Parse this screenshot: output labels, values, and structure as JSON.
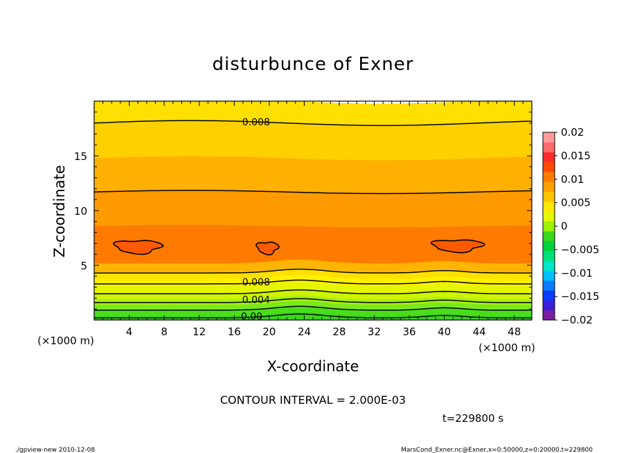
{
  "chart_data": {
    "type": "heatmap",
    "title": "disturbunce of Exner",
    "xlabel": "X-coordinate",
    "ylabel": "Z-coordinate",
    "x_unit": "(×1000 m)",
    "y_unit": "(×1000 m)",
    "xlim": [
      0,
      50
    ],
    "ylim": [
      0,
      20
    ],
    "x_ticks": [
      4,
      8,
      12,
      16,
      20,
      24,
      28,
      32,
      36,
      40,
      44,
      48
    ],
    "y_ticks": [
      5,
      10,
      15
    ],
    "contour_interval_label": "CONTOUR INTERVAL = 2.000E-03",
    "contour_labels": [
      {
        "text": "0.008",
        "x": 18.5,
        "z": 18.0
      },
      {
        "text": "0.008",
        "x": 18.5,
        "z": 3.5
      },
      {
        "text": "0.004",
        "x": 18.5,
        "z": 1.9
      },
      {
        "text": "0.00",
        "x": 18.0,
        "z": 0.4
      }
    ],
    "colorbar": {
      "min": -0.02,
      "max": 0.02,
      "tick_labels": [
        "0.02",
        "0.015",
        "0.01",
        "0.005",
        "0",
        "−0.005",
        "−0.01",
        "−0.015",
        "−0.02"
      ],
      "colors": [
        "#7a1fa2",
        "#3a1fd6",
        "#0a3cff",
        "#0a7bff",
        "#00bfff",
        "#00e6c8",
        "#00e07a",
        "#00d23c",
        "#3ad81a",
        "#9cf000",
        "#e6f500",
        "#ffe600",
        "#ffc400",
        "#ffa000",
        "#ff7a00",
        "#ff4a00",
        "#ff2a2a",
        "#ff6a6a",
        "#ff9a9a"
      ]
    },
    "bands": [
      {
        "z0": 0.0,
        "z1": 0.5,
        "value": 0.0,
        "color": "#3ad81a"
      },
      {
        "z0": 0.5,
        "z1": 1.0,
        "value": 0.001,
        "color": "#4ade1a"
      },
      {
        "z0": 1.0,
        "z1": 1.5,
        "value": 0.002,
        "color": "#7ae81a"
      },
      {
        "z0": 1.5,
        "z1": 2.0,
        "value": 0.003,
        "color": "#a6f010"
      },
      {
        "z0": 2.0,
        "z1": 2.6,
        "value": 0.004,
        "color": "#cff400"
      },
      {
        "z0": 2.6,
        "z1": 3.2,
        "value": 0.005,
        "color": "#e6f500"
      },
      {
        "z0": 3.2,
        "z1": 3.9,
        "value": 0.006,
        "color": "#fff000"
      },
      {
        "z0": 3.9,
        "z1": 4.5,
        "value": 0.007,
        "color": "#ffe000"
      },
      {
        "z0": 4.5,
        "z1": 5.3,
        "value": 0.0085,
        "color": "#ffb400"
      },
      {
        "z0": 5.3,
        "z1": 8.6,
        "value": 0.0105,
        "color": "#ff7a00"
      },
      {
        "z0": 8.6,
        "z1": 11.7,
        "value": 0.0095,
        "color": "#ff9a00"
      },
      {
        "z0": 11.7,
        "z1": 14.8,
        "value": 0.009,
        "color": "#ffb000"
      },
      {
        "z0": 14.8,
        "z1": 18.0,
        "value": 0.0085,
        "color": "#ffd000"
      },
      {
        "z0": 18.0,
        "z1": 20.0,
        "value": 0.008,
        "color": "#ffe000"
      }
    ],
    "contour_lines_z": [
      0.3,
      1.0,
      1.7,
      2.5,
      3.4,
      4.4,
      11.7,
      18.0
    ],
    "blobs": [
      {
        "cx": 5.0,
        "cz": 6.7,
        "rx": 2.6,
        "rz": 0.6
      },
      {
        "cx": 19.8,
        "cz": 6.6,
        "rx": 1.2,
        "rz": 0.55
      },
      {
        "cx": 41.5,
        "cz": 6.8,
        "rx": 2.8,
        "rz": 0.55
      }
    ],
    "grid": false
  },
  "time_label": "t=229800 s",
  "footer": {
    "left": "./gpview-new   2010-12-08",
    "right": "MarsCond_Exner.nc@Exner,x=0:50000,z=0:20000,t=229800"
  }
}
